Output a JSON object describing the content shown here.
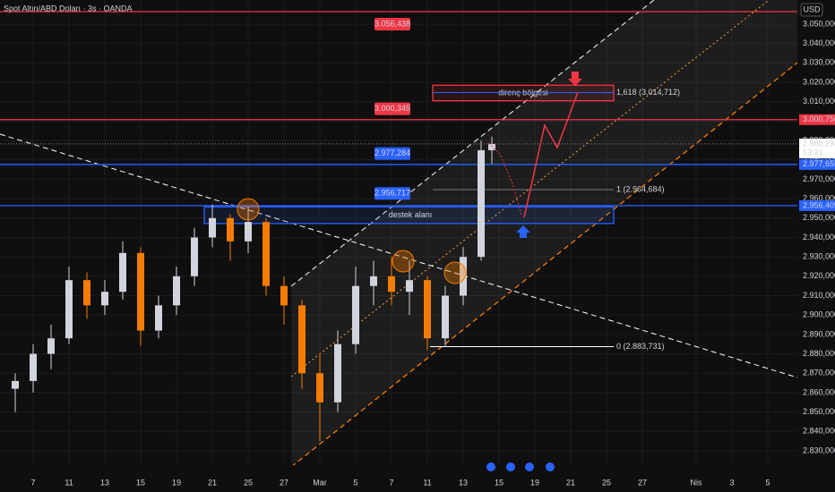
{
  "chart_data": {
    "type": "candlestick",
    "title": "Spot Altın/ABD Doları · 3s · OANDA",
    "currency": "USD",
    "up_color": "#d1d4dc",
    "down_color": "#f57c00",
    "x": [
      -1,
      0,
      1,
      2,
      3,
      4,
      5,
      6,
      7,
      8,
      9,
      10,
      11,
      12,
      13,
      14,
      15,
      16,
      17,
      18,
      19,
      20,
      21,
      22,
      23,
      24,
      25,
      25.6
    ],
    "open": [
      2862,
      2866,
      2880,
      2888,
      2918,
      2905,
      2912,
      2932,
      2892,
      2905,
      2920,
      2940,
      2950,
      2938,
      2948,
      2915,
      2905,
      2870,
      2855,
      2885,
      2915,
      2920,
      2912,
      2918,
      2888,
      2910,
      2930,
      2985
    ],
    "high": [
      2870,
      2885,
      2895,
      2925,
      2922,
      2918,
      2938,
      2935,
      2910,
      2925,
      2945,
      2957,
      2952,
      2956,
      2950,
      2920,
      2908,
      2880,
      2892,
      2925,
      2928,
      2930,
      2928,
      2920,
      2915,
      2935,
      2990,
      2992
    ],
    "low": [
      2850,
      2860,
      2872,
      2885,
      2898,
      2900,
      2908,
      2884,
      2888,
      2900,
      2915,
      2935,
      2928,
      2932,
      2910,
      2895,
      2862,
      2835,
      2850,
      2880,
      2905,
      2905,
      2900,
      2882,
      2884,
      2905,
      2928,
      2978
    ],
    "close": [
      2866,
      2880,
      2888,
      2918,
      2905,
      2912,
      2932,
      2892,
      2905,
      2920,
      2940,
      2950,
      2938,
      2948,
      2915,
      2905,
      2870,
      2855,
      2885,
      2915,
      2920,
      2912,
      2918,
      2888,
      2910,
      2930,
      2985,
      2988.23
    ],
    "xlim": [
      -1.85,
      42.65
    ],
    "xticks": [
      {
        "value": 0,
        "label": "7"
      },
      {
        "value": 2,
        "label": "11"
      },
      {
        "value": 4,
        "label": "13"
      },
      {
        "value": 6,
        "label": "15"
      },
      {
        "value": 8,
        "label": "19"
      },
      {
        "value": 10,
        "label": "21"
      },
      {
        "value": 12,
        "label": "25"
      },
      {
        "value": 14,
        "label": "27"
      },
      {
        "value": 16,
        "label": "Mar"
      },
      {
        "value": 18,
        "label": "5"
      },
      {
        "value": 20,
        "label": "7"
      },
      {
        "value": 22,
        "label": "11"
      },
      {
        "value": 24,
        "label": "13"
      },
      {
        "value": 26,
        "label": "15"
      },
      {
        "value": 28,
        "label": "19"
      },
      {
        "value": 30,
        "label": "21"
      },
      {
        "value": 32,
        "label": "25"
      },
      {
        "value": 34,
        "label": "27"
      },
      {
        "value": 37,
        "label": "Nis"
      },
      {
        "value": 39,
        "label": "3"
      },
      {
        "value": 41,
        "label": "5"
      }
    ],
    "ylim": [
      2822.6,
      3062.45
    ],
    "yticks": [
      {
        "value": 2830,
        "label": "2.830,000"
      },
      {
        "value": 2840,
        "label": "2.840,000"
      },
      {
        "value": 2850,
        "label": "2.850,000"
      },
      {
        "value": 2860,
        "label": "2.860,000"
      },
      {
        "value": 2870,
        "label": "2.870,000"
      },
      {
        "value": 2880,
        "label": "2.880,000"
      },
      {
        "value": 2890,
        "label": "2.890,000"
      },
      {
        "value": 2900,
        "label": "2.900,000"
      },
      {
        "value": 2910,
        "label": "2.910,000"
      },
      {
        "value": 2920,
        "label": "2.920,000"
      },
      {
        "value": 2930,
        "label": "2.930,000"
      },
      {
        "value": 2940,
        "label": "2.940,000"
      },
      {
        "value": 2950,
        "label": "2.950,000"
      },
      {
        "value": 2960,
        "label": "2.960,000"
      },
      {
        "value": 2970,
        "label": "2.970,000"
      },
      {
        "value": 2980,
        "label": "2.980,000"
      },
      {
        "value": 2990,
        "label": "2.990,000"
      },
      {
        "value": 3000,
        "label": "3.000,000"
      },
      {
        "value": 3010,
        "label": "3.010,000"
      },
      {
        "value": 3020,
        "label": "3.020,000"
      },
      {
        "value": 3030,
        "label": "3.030,000"
      },
      {
        "value": 3040,
        "label": "3.040,000"
      },
      {
        "value": 3050,
        "label": "3.050,000"
      }
    ],
    "hlines": [
      {
        "value": 3056.438,
        "color": "#f23645"
      },
      {
        "value": 3000.75,
        "label": "3.000,750",
        "color": "#f23645"
      },
      {
        "value": 2977.655,
        "label": "2.977,655",
        "color": "#2962ff"
      },
      {
        "value": 2956.405,
        "label": "2.956,405",
        "color": "#2962ff"
      }
    ],
    "tags": [
      {
        "value": 3056.438,
        "label": "3.056,438",
        "color": "#f23645"
      },
      {
        "value": 3000.345,
        "label": "3.000,345",
        "color": "#f23645"
      },
      {
        "value": 2977.284,
        "label": "2.977,284",
        "color": "#2962ff"
      },
      {
        "value": 2956.717,
        "label": "2.956,717",
        "color": "#2962ff"
      }
    ],
    "fib_levels": [
      {
        "value": 3014.712,
        "label": "1,618 (3.014,712)",
        "color": "#2962ff"
      },
      {
        "value": 2964.684,
        "label": "1 (2.964,684)",
        "color": "#787b86"
      },
      {
        "value": 2883.731,
        "label": "0 (2.883,731)",
        "color": "#ffffff"
      }
    ],
    "zones": [
      {
        "label": "direnç bölgesi",
        "ylim": [
          3010.5,
          3018.5
        ],
        "xlim": [
          22.3,
          32.4
        ],
        "color": "#f23645"
      },
      {
        "label": "destek alanı",
        "ylim": [
          2947.2,
          2955.8
        ],
        "xlim": [
          9.55,
          32.4
        ],
        "color": "#2962ff"
      }
    ],
    "last_price": {
      "value": 2988.23,
      "label": "2.988,230",
      "countdown": "53:31"
    }
  }
}
